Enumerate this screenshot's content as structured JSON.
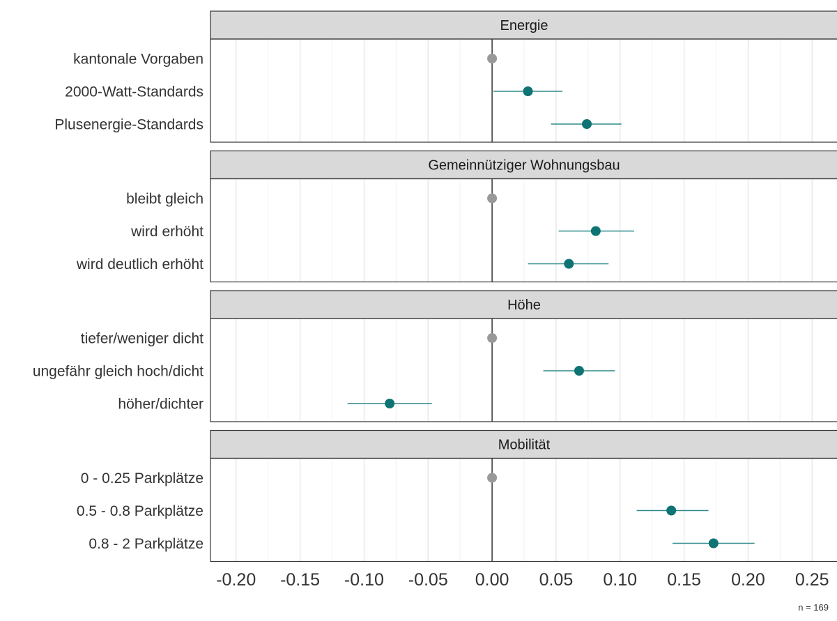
{
  "chart_data": {
    "type": "scatter",
    "subtype": "coefficient-plot with horizontal confidence intervals, faceted",
    "xlim": [
      -0.22,
      0.27
    ],
    "x_ticks": [
      -0.2,
      -0.15,
      -0.1,
      -0.05,
      0.0,
      0.05,
      0.1,
      0.15,
      0.2,
      0.25
    ],
    "x_tick_labels": [
      "-0.20",
      "-0.15",
      "-0.10",
      "-0.05",
      "0.00",
      "0.05",
      "0.10",
      "0.15",
      "0.20",
      "0.25"
    ],
    "zero_line": 0,
    "grid": true,
    "colors": {
      "reference": "#999999",
      "estimate": "#0e7373",
      "ci": "#2f8a8a",
      "strip_bg": "#d9d9d9"
    },
    "panels": [
      {
        "title": "Energie",
        "rows": [
          {
            "label": "kantonale Vorgaben",
            "estimate": 0.0,
            "lower": null,
            "upper": null,
            "reference": true
          },
          {
            "label": "2000-Watt-Standards",
            "estimate": 0.028,
            "lower": 0.001,
            "upper": 0.055,
            "reference": false
          },
          {
            "label": "Plusenergie-Standards",
            "estimate": 0.074,
            "lower": 0.046,
            "upper": 0.101,
            "reference": false
          }
        ]
      },
      {
        "title": "Gemeinnütziger Wohnungsbau",
        "rows": [
          {
            "label": "bleibt gleich",
            "estimate": 0.0,
            "lower": null,
            "upper": null,
            "reference": true
          },
          {
            "label": "wird erhöht",
            "estimate": 0.081,
            "lower": 0.052,
            "upper": 0.111,
            "reference": false
          },
          {
            "label": "wird deutlich erhöht",
            "estimate": 0.06,
            "lower": 0.028,
            "upper": 0.091,
            "reference": false
          }
        ]
      },
      {
        "title": "Höhe",
        "rows": [
          {
            "label": "tiefer/weniger dicht",
            "estimate": 0.0,
            "lower": null,
            "upper": null,
            "reference": true
          },
          {
            "label": "ungefähr gleich hoch/dicht",
            "estimate": 0.068,
            "lower": 0.04,
            "upper": 0.096,
            "reference": false
          },
          {
            "label": "höher/dichter",
            "estimate": -0.08,
            "lower": -0.113,
            "upper": -0.047,
            "reference": false
          }
        ]
      },
      {
        "title": "Mobilität",
        "rows": [
          {
            "label": "0 - 0.25 Parkplätze",
            "estimate": 0.0,
            "lower": null,
            "upper": null,
            "reference": true
          },
          {
            "label": "0.5 - 0.8 Parkplätze",
            "estimate": 0.14,
            "lower": 0.113,
            "upper": 0.169,
            "reference": false
          },
          {
            "label": "0.8 - 2 Parkplätze",
            "estimate": 0.173,
            "lower": 0.141,
            "upper": 0.205,
            "reference": false
          }
        ]
      }
    ],
    "annotation": "n = 169"
  }
}
